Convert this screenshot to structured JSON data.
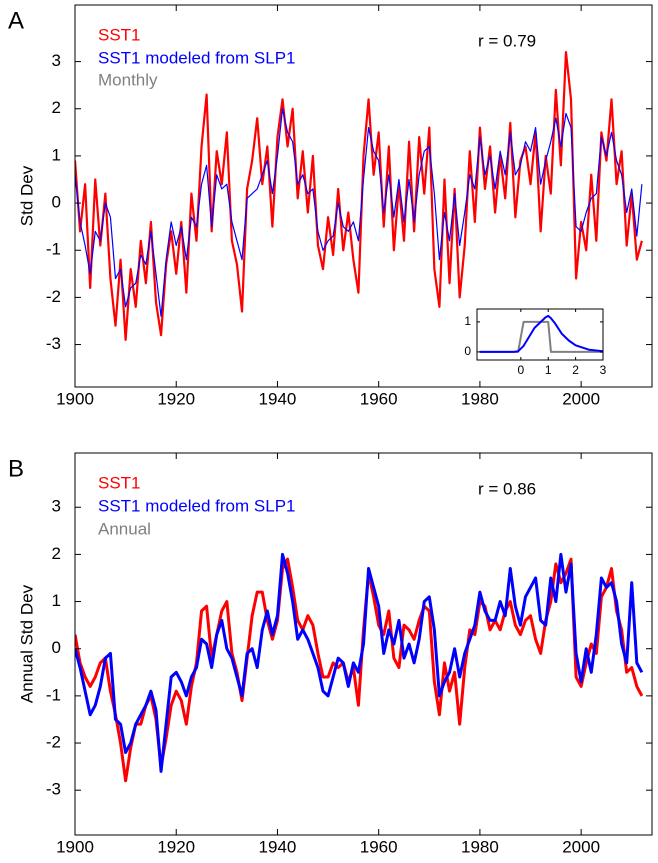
{
  "chart_data": [
    {
      "type": "line",
      "label": "A",
      "ylabel": "Std Dev",
      "annotation": "r = 0.79",
      "window_label": "Monthly",
      "window_color": "#808080",
      "xlim": [
        1900,
        2014
      ],
      "ylim": [
        -3.9,
        4.2
      ],
      "xticks": [
        1900,
        1920,
        1940,
        1960,
        1980,
        2000
      ],
      "yticks": [
        -3,
        -2,
        -1,
        0,
        1,
        2,
        3
      ],
      "x": [
        1900,
        1901,
        1902,
        1903,
        1904,
        1905,
        1906,
        1907,
        1908,
        1909,
        1910,
        1911,
        1912,
        1913,
        1914,
        1915,
        1916,
        1917,
        1918,
        1919,
        1920,
        1921,
        1922,
        1923,
        1924,
        1925,
        1926,
        1927,
        1928,
        1929,
        1930,
        1931,
        1932,
        1933,
        1934,
        1935,
        1936,
        1937,
        1938,
        1939,
        1940,
        1941,
        1942,
        1943,
        1944,
        1945,
        1946,
        1947,
        1948,
        1949,
        1950,
        1951,
        1952,
        1953,
        1954,
        1955,
        1956,
        1957,
        1958,
        1959,
        1960,
        1961,
        1962,
        1963,
        1964,
        1965,
        1966,
        1967,
        1968,
        1969,
        1970,
        1971,
        1972,
        1973,
        1974,
        1975,
        1976,
        1977,
        1978,
        1979,
        1980,
        1981,
        1982,
        1983,
        1984,
        1985,
        1986,
        1987,
        1988,
        1989,
        1990,
        1991,
        1992,
        1993,
        1994,
        1995,
        1996,
        1997,
        1998,
        1999,
        2000,
        2001,
        2002,
        2003,
        2004,
        2005,
        2006,
        2007,
        2008,
        2009,
        2010,
        2011,
        2012
      ],
      "series": [
        {
          "name": "SST1",
          "color": "#ff0000",
          "values": [
            0.9,
            -0.6,
            0.4,
            -1.8,
            0.5,
            -0.9,
            0.2,
            -1.6,
            -2.6,
            -1.2,
            -2.9,
            -1.4,
            -2.2,
            -0.8,
            -1.7,
            -0.4,
            -2.1,
            -2.8,
            -1.3,
            -0.6,
            -1.5,
            -0.4,
            -1.9,
            0.2,
            -0.8,
            1.2,
            2.3,
            -0.6,
            1.1,
            0.4,
            1.5,
            -0.8,
            -1.3,
            -2.3,
            0.3,
            0.9,
            1.8,
            0.4,
            1.2,
            -0.5,
            1.4,
            2.2,
            1.2,
            2.0,
            0.1,
            1.1,
            -0.2,
            1.0,
            -0.9,
            -1.4,
            -0.3,
            -1.1,
            0.3,
            -1.0,
            -0.2,
            -1.2,
            -1.9,
            1.0,
            2.2,
            0.6,
            1.5,
            -0.5,
            1.2,
            -1.0,
            0.4,
            -0.8,
            1.3,
            -0.6,
            1.4,
            0.2,
            1.6,
            -1.4,
            -2.2,
            0.5,
            -1.7,
            0.3,
            -2.0,
            -0.9,
            1.1,
            -0.4,
            1.6,
            0.3,
            1.2,
            -0.2,
            1.0,
            0.1,
            1.7,
            -0.3,
            0.9,
            1.2,
            0.4,
            1.5,
            -0.6,
            1.0,
            0.2,
            2.4,
            0.8,
            3.2,
            2.2,
            -1.6,
            -0.4,
            -1.0,
            0.6,
            -0.8,
            1.5,
            0.9,
            2.2,
            0.4,
            1.1,
            -0.9,
            0.2,
            -1.2,
            -0.8
          ]
        },
        {
          "name": "SST1 modeled from SLP1",
          "color": "#0000ff",
          "values": [
            0.6,
            -0.4,
            -0.9,
            -1.5,
            -0.6,
            -0.8,
            0.0,
            -0.3,
            -1.6,
            -1.4,
            -2.2,
            -1.8,
            -1.7,
            -1.1,
            -1.3,
            -0.6,
            -1.5,
            -2.4,
            -1.2,
            -0.4,
            -0.9,
            -0.5,
            -1.2,
            -0.3,
            -0.5,
            0.4,
            0.8,
            -0.5,
            0.6,
            0.3,
            0.4,
            -0.4,
            -0.8,
            -1.2,
            0.1,
            0.2,
            0.3,
            0.6,
            0.9,
            0.2,
            1.0,
            2.0,
            1.5,
            1.3,
            0.4,
            0.6,
            0.2,
            0.3,
            -0.6,
            -1.0,
            -0.8,
            -0.7,
            0.0,
            -0.5,
            -0.6,
            -0.4,
            -0.8,
            0.5,
            1.6,
            1.1,
            0.9,
            -0.2,
            0.6,
            -0.3,
            0.5,
            -0.4,
            0.5,
            -0.4,
            0.6,
            1.1,
            1.2,
            0.2,
            -1.2,
            -0.2,
            -0.8,
            0.2,
            -0.9,
            -0.2,
            0.6,
            0.3,
            1.4,
            0.6,
            1.0,
            0.3,
            1.1,
            0.6,
            1.5,
            0.6,
            0.8,
            1.3,
            1.1,
            1.6,
            0.4,
            0.9,
            1.3,
            1.8,
            1.2,
            1.9,
            1.6,
            -0.5,
            -0.6,
            -0.2,
            0.1,
            0.2,
            1.4,
            1.0,
            1.5,
            0.9,
            0.6,
            -0.2,
            0.3,
            -0.7,
            0.4
          ]
        }
      ]
    },
    {
      "type": "line",
      "label": "B",
      "ylabel": "Annual Std Dev",
      "annotation": "r = 0.86",
      "window_label": "Annual",
      "window_color": "#808080",
      "xlim": [
        1900,
        2014
      ],
      "ylim": [
        -3.95,
        4.15
      ],
      "xticks": [
        1900,
        1920,
        1940,
        1960,
        1980,
        2000
      ],
      "yticks": [
        -3,
        -2,
        -1,
        0,
        1,
        2,
        3
      ],
      "x": [
        1900,
        1901,
        1902,
        1903,
        1904,
        1905,
        1906,
        1907,
        1908,
        1909,
        1910,
        1911,
        1912,
        1913,
        1914,
        1915,
        1916,
        1917,
        1918,
        1919,
        1920,
        1921,
        1922,
        1923,
        1924,
        1925,
        1926,
        1927,
        1928,
        1929,
        1930,
        1931,
        1932,
        1933,
        1934,
        1935,
        1936,
        1937,
        1938,
        1939,
        1940,
        1941,
        1942,
        1943,
        1944,
        1945,
        1946,
        1947,
        1948,
        1949,
        1950,
        1951,
        1952,
        1953,
        1954,
        1955,
        1956,
        1957,
        1958,
        1959,
        1960,
        1961,
        1962,
        1963,
        1964,
        1965,
        1966,
        1967,
        1968,
        1969,
        1970,
        1971,
        1972,
        1973,
        1974,
        1975,
        1976,
        1977,
        1978,
        1979,
        1980,
        1981,
        1982,
        1983,
        1984,
        1985,
        1986,
        1987,
        1988,
        1989,
        1990,
        1991,
        1992,
        1993,
        1994,
        1995,
        1996,
        1997,
        1998,
        1999,
        2000,
        2001,
        2002,
        2003,
        2004,
        2005,
        2006,
        2007,
        2008,
        2009,
        2010,
        2011,
        2012
      ],
      "series": [
        {
          "name": "SST1",
          "color": "#ff0000",
          "values": [
            0.3,
            -0.3,
            -0.6,
            -0.8,
            -0.6,
            -0.3,
            -0.2,
            -0.9,
            -1.4,
            -2.0,
            -2.8,
            -2.1,
            -1.6,
            -1.6,
            -1.2,
            -1.0,
            -1.5,
            -2.5,
            -1.9,
            -1.2,
            -0.9,
            -1.1,
            -1.6,
            -0.8,
            -0.3,
            0.8,
            0.9,
            -0.2,
            0.3,
            0.8,
            1.0,
            -0.1,
            -0.5,
            -1.1,
            -0.2,
            0.7,
            1.2,
            1.2,
            0.6,
            0.2,
            0.6,
            1.7,
            1.9,
            1.3,
            0.6,
            0.4,
            0.7,
            0.5,
            -0.1,
            -0.6,
            -0.6,
            -0.3,
            -0.4,
            -0.3,
            -0.7,
            -0.4,
            -1.2,
            0.4,
            1.6,
            1.1,
            0.5,
            0.3,
            0.8,
            -0.2,
            -0.4,
            0.5,
            0.4,
            0.2,
            0.6,
            0.9,
            0.8,
            -0.7,
            -1.4,
            -0.3,
            -0.9,
            -0.5,
            -1.6,
            -0.4,
            0.4,
            0.3,
            1.0,
            0.9,
            0.4,
            0.6,
            0.4,
            0.8,
            1.0,
            0.5,
            0.3,
            0.6,
            0.7,
            0.2,
            -0.1,
            0.6,
            1.0,
            1.8,
            1.4,
            1.6,
            1.9,
            -0.6,
            -0.8,
            -0.3,
            0.1,
            -0.1,
            1.1,
            1.3,
            1.7,
            0.8,
            0.4,
            -0.5,
            -0.4,
            -0.8,
            -1.0
          ]
        },
        {
          "name": "SST1 modeled from SLP1",
          "color": "#0000ff",
          "values": [
            0.0,
            -0.4,
            -0.9,
            -1.4,
            -1.2,
            -0.8,
            -0.2,
            -0.1,
            -1.5,
            -1.6,
            -2.2,
            -2.0,
            -1.6,
            -1.4,
            -1.2,
            -0.9,
            -1.3,
            -2.6,
            -1.6,
            -0.6,
            -0.5,
            -0.7,
            -1.0,
            -0.6,
            -0.4,
            0.2,
            0.1,
            -0.4,
            0.3,
            0.6,
            0.0,
            -0.2,
            -0.6,
            -1.0,
            -0.1,
            0.0,
            -0.4,
            0.4,
            0.8,
            0.3,
            0.7,
            2.0,
            1.6,
            1.0,
            0.2,
            0.4,
            0.2,
            -0.1,
            -0.4,
            -0.9,
            -1.0,
            -0.6,
            -0.2,
            -0.3,
            -0.8,
            -0.3,
            -0.5,
            0.1,
            1.7,
            1.3,
            0.9,
            -0.1,
            0.4,
            0.1,
            0.6,
            -0.2,
            0.1,
            -0.3,
            0.2,
            1.0,
            1.1,
            0.4,
            -1.0,
            -0.7,
            -0.5,
            0.0,
            -0.6,
            -0.1,
            0.2,
            0.5,
            1.2,
            0.8,
            0.6,
            0.6,
            1.0,
            0.7,
            1.7,
            0.9,
            0.5,
            1.1,
            1.3,
            1.5,
            0.6,
            0.5,
            1.5,
            1.0,
            2.0,
            1.2,
            1.8,
            -0.1,
            -0.7,
            0.0,
            -0.5,
            0.3,
            1.5,
            1.3,
            1.4,
            1.0,
            0.1,
            -0.3,
            1.4,
            -0.3,
            -0.5
          ]
        }
      ]
    },
    {
      "type": "line",
      "xlim": [
        -1.6,
        3
      ],
      "ylim": [
        -0.27,
        1.43
      ],
      "xticks": [
        0,
        1,
        2,
        3
      ],
      "yticks": [
        0,
        1
      ],
      "x": [
        -1.5,
        -0.25,
        -0.1,
        0.1,
        0.5,
        0.9,
        1.0,
        1.1,
        1.25,
        1.5,
        1.75,
        2,
        2.5,
        3
      ],
      "series": [
        {
          "color": "#808080",
          "values": [
            0,
            0,
            0,
            1,
            1,
            1,
            1,
            0,
            0,
            0,
            0,
            0,
            0,
            0
          ]
        },
        {
          "color": "#0000ff",
          "values": [
            0,
            0,
            0.02,
            0.2,
            0.8,
            1.15,
            1.2,
            1.12,
            0.95,
            0.6,
            0.38,
            0.22,
            0.07,
            0.02
          ]
        }
      ]
    }
  ]
}
